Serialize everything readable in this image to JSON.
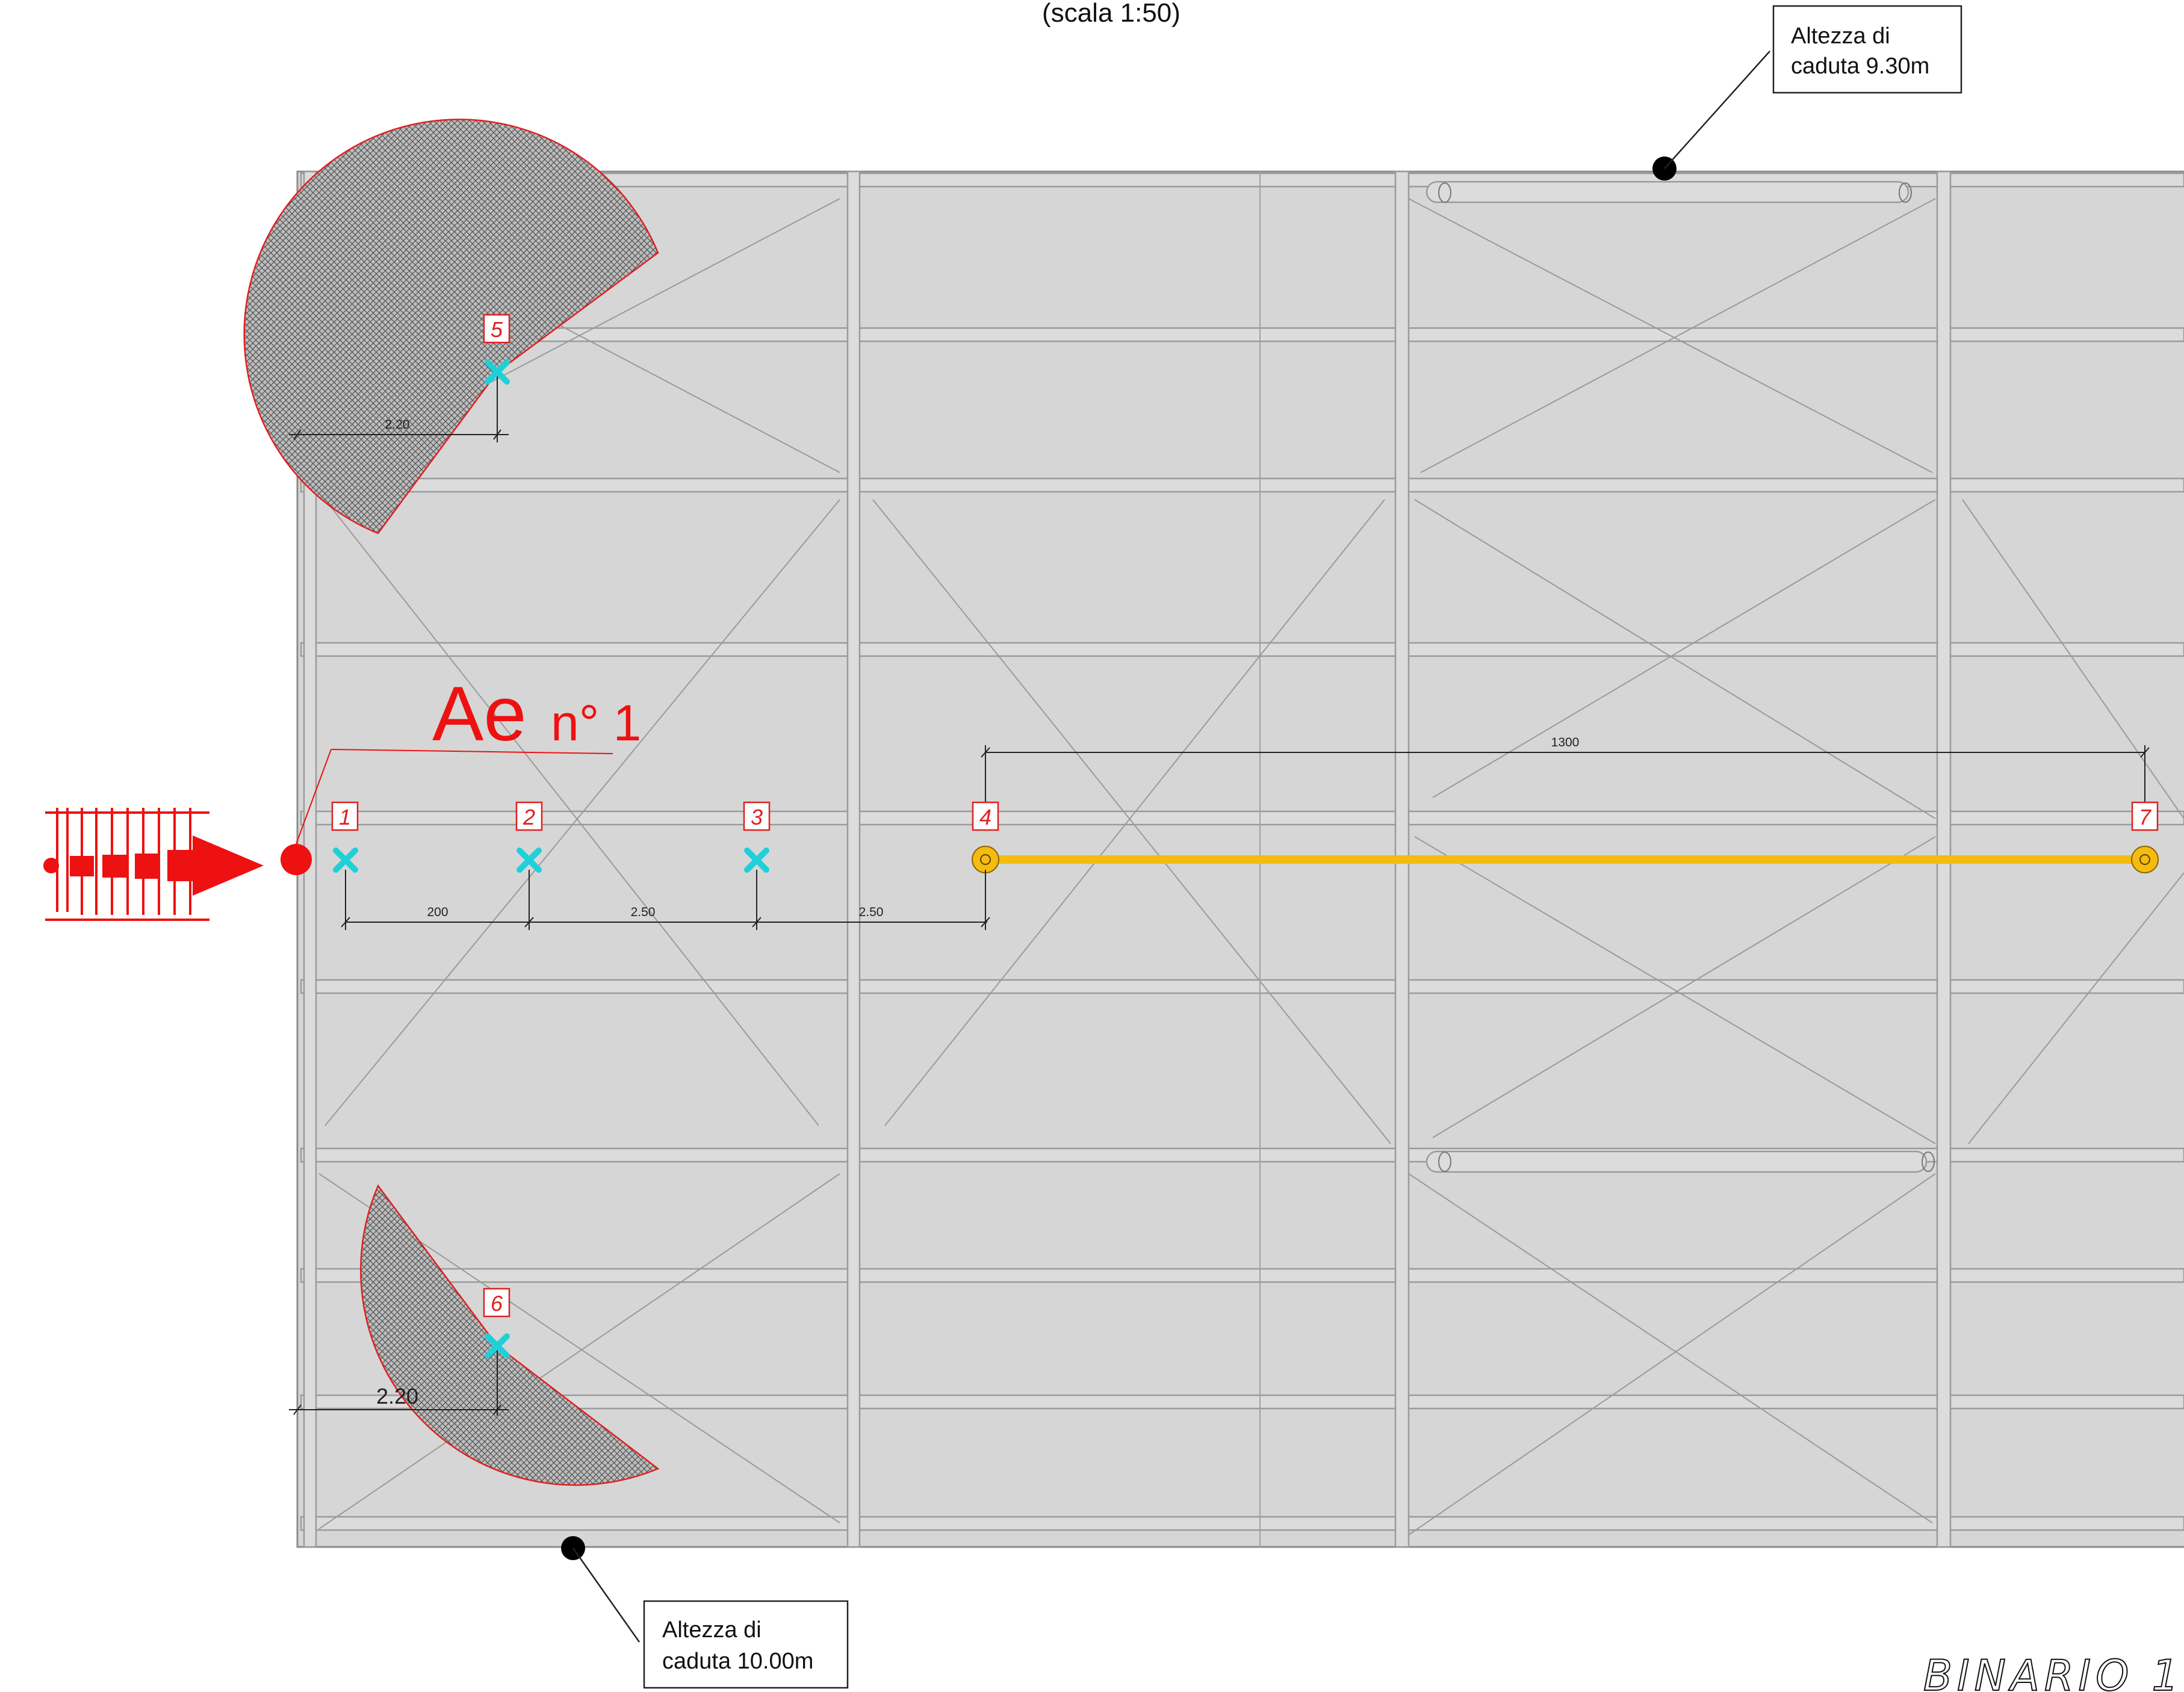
{
  "scale_label": "(scala 1:50)",
  "callouts": {
    "top": {
      "line1": "Altezza di",
      "line2": "caduta 9.30m"
    },
    "bottom": {
      "line1": "Altezza di",
      "line2": "caduta 10.00m"
    }
  },
  "access_point": {
    "label_main": "Ae",
    "label_num": "n° 1"
  },
  "anchors": [
    {
      "id": "1",
      "type": "point-anchor"
    },
    {
      "id": "2",
      "type": "point-anchor"
    },
    {
      "id": "3",
      "type": "point-anchor"
    },
    {
      "id": "4",
      "type": "lifeline-end"
    },
    {
      "id": "5",
      "type": "point-anchor"
    },
    {
      "id": "6",
      "type": "point-anchor"
    },
    {
      "id": "7",
      "type": "lifeline-end"
    }
  ],
  "dimensions": {
    "d1": "200",
    "d2": "2.50",
    "d3": "2.50",
    "lifeline_len": "1300",
    "radius_top": "2.20",
    "radius_bottom": "2.20"
  },
  "footer_label": "BINARIO 1",
  "colors": {
    "roof": "#d6d6d6",
    "accent_red": "#ee1111",
    "anchor_cyan": "#1fd0d8",
    "lifeline_yellow": "#f5bb10"
  }
}
